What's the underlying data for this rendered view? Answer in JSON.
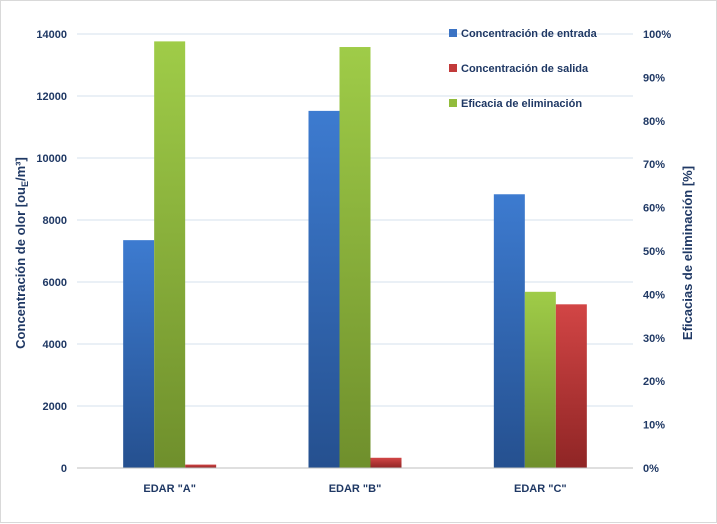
{
  "chart_data": {
    "type": "bar",
    "categories": [
      "EDAR \"A\"",
      "EDAR \"B\"",
      "EDAR \"C\""
    ],
    "series": [
      {
        "name": "Concentración de entrada",
        "axis": "left",
        "color": "#3b73c4",
        "values": [
          7350,
          11520,
          8830
        ]
      },
      {
        "name": "Eficacia de eliminación",
        "axis": "right",
        "color": "#92bc3c",
        "values": [
          98.3,
          97.0,
          40.6
        ]
      },
      {
        "name": "Concentración de salida",
        "axis": "left",
        "color": "#c23a3a",
        "values": [
          110,
          330,
          5280
        ]
      }
    ],
    "legend_order": [
      0,
      2,
      1
    ],
    "left_axis": {
      "label_prefix": "Concentración de olor [ou",
      "label_sub": "E",
      "label_suffix": "/m³]",
      "ylim": [
        0,
        14000
      ],
      "ticks": [
        "0",
        "2000",
        "4000",
        "6000",
        "8000",
        "10000",
        "12000",
        "14000"
      ]
    },
    "right_axis": {
      "label": "Eficacias de eliminación [%]",
      "ylim": [
        0,
        100
      ],
      "ticks": [
        "0%",
        "10%",
        "20%",
        "30%",
        "40%",
        "50%",
        "60%",
        "70%",
        "80%",
        "90%",
        "100%"
      ]
    },
    "grid": true,
    "legend_position": "top-right"
  }
}
